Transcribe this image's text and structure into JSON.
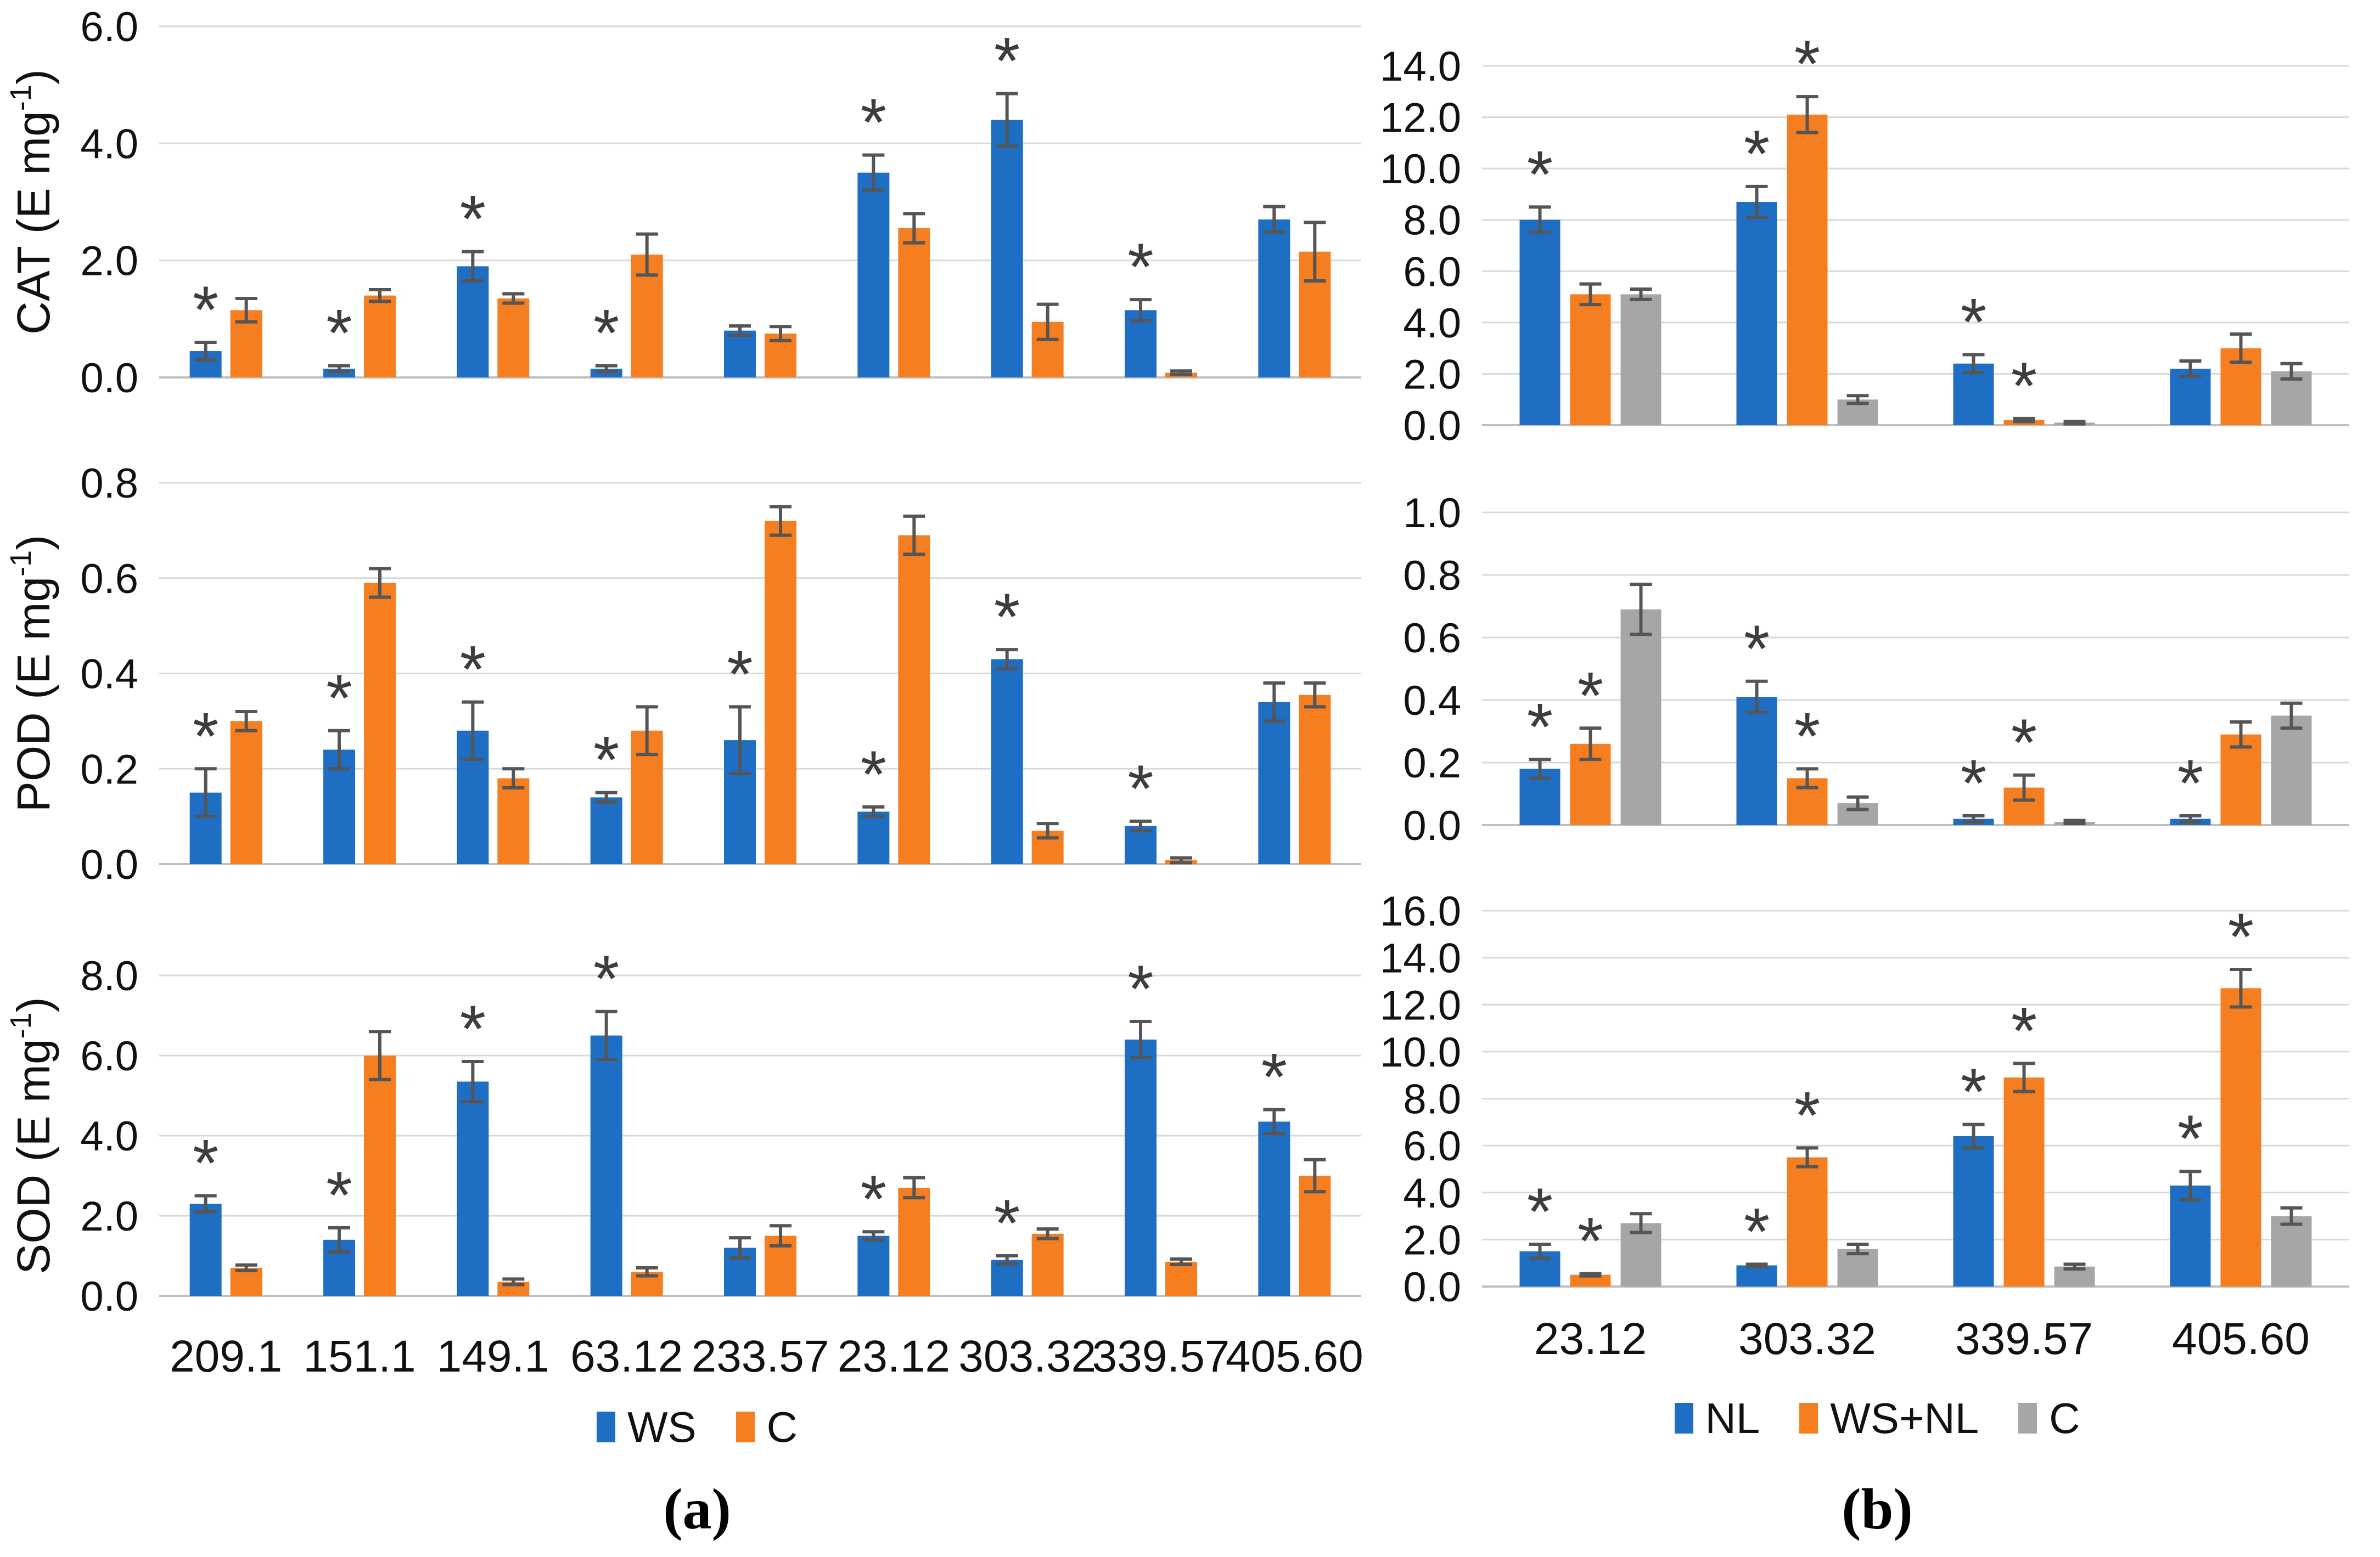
{
  "figure_title": "",
  "captions": {
    "a": "(a)",
    "b": "(b)"
  },
  "colors": {
    "ws_blue": "#1E6FC3",
    "c_orange": "#F57E20",
    "c_gray": "#A6A6A6",
    "error_bar": "#555555",
    "gridline": "#D9D9D9",
    "axis_line": "#BFBFBF",
    "asterisk": "#3D3D3D",
    "text": "#111111"
  },
  "legends": {
    "a": [
      {
        "key": "ws",
        "label": "WS",
        "color": "#1E6FC3"
      },
      {
        "key": "c",
        "label": "C",
        "color": "#F57E20"
      }
    ],
    "b": [
      {
        "key": "nl",
        "label": "NL",
        "color": "#1E6FC3"
      },
      {
        "key": "ws-nl",
        "label": "WS+NL",
        "color": "#F57E20"
      },
      {
        "key": "c",
        "label": "C",
        "color": "#A6A6A6"
      }
    ]
  },
  "chart_data": [
    {
      "id": "a_cat",
      "type": "bar",
      "panel": "a",
      "ylabel": "CAT (E mg⁻¹)",
      "ylim": [
        0,
        6
      ],
      "yticks": [
        0,
        2,
        4,
        6
      ],
      "grid": true,
      "legend_position": "bottom",
      "categories": [
        "209.1",
        "151.1",
        "149.1",
        "63.12",
        "233.57",
        "23.12",
        "303.32",
        "339.57",
        "405.60"
      ],
      "show_x_labels": false,
      "series": [
        {
          "name": "WS",
          "color": "#1E6FC3",
          "values": [
            0.45,
            0.15,
            1.9,
            0.15,
            0.8,
            3.5,
            4.4,
            1.15,
            2.7
          ],
          "errors": [
            0.15,
            0.05,
            0.25,
            0.05,
            0.08,
            0.3,
            0.45,
            0.18,
            0.22
          ],
          "sig": [
            1,
            1,
            1,
            1,
            0,
            1,
            1,
            1,
            0
          ]
        },
        {
          "name": "C",
          "color": "#F57E20",
          "values": [
            1.15,
            1.4,
            1.35,
            2.1,
            0.75,
            2.55,
            0.95,
            0.08,
            2.15
          ],
          "errors": [
            0.2,
            0.1,
            0.08,
            0.35,
            0.12,
            0.25,
            0.3,
            0.03,
            0.5
          ],
          "sig": [
            0,
            0,
            0,
            0,
            0,
            0,
            0,
            0,
            0
          ]
        }
      ]
    },
    {
      "id": "a_pod",
      "type": "bar",
      "panel": "a",
      "ylabel": "POD (E mg⁻¹)",
      "ylim": [
        0,
        0.8
      ],
      "yticks": [
        0,
        0.2,
        0.4,
        0.6,
        0.8
      ],
      "grid": true,
      "legend_position": "bottom",
      "categories": [
        "209.1",
        "151.1",
        "149.1",
        "63.12",
        "233.57",
        "23.12",
        "303.32",
        "339.57",
        "405.60"
      ],
      "show_x_labels": false,
      "series": [
        {
          "name": "WS",
          "color": "#1E6FC3",
          "values": [
            0.15,
            0.24,
            0.28,
            0.14,
            0.26,
            0.11,
            0.43,
            0.08,
            0.34
          ],
          "errors": [
            0.05,
            0.04,
            0.06,
            0.01,
            0.07,
            0.01,
            0.02,
            0.01,
            0.04
          ],
          "sig": [
            1,
            1,
            1,
            1,
            1,
            1,
            1,
            1,
            0
          ]
        },
        {
          "name": "C",
          "color": "#F57E20",
          "values": [
            0.3,
            0.59,
            0.18,
            0.28,
            0.72,
            0.69,
            0.07,
            0.008,
            0.355
          ],
          "errors": [
            0.02,
            0.03,
            0.02,
            0.05,
            0.03,
            0.04,
            0.015,
            0.005,
            0.025
          ],
          "sig": [
            0,
            0,
            0,
            0,
            0,
            0,
            0,
            0,
            0
          ]
        }
      ]
    },
    {
      "id": "a_sod",
      "type": "bar",
      "panel": "a",
      "ylabel": "SOD (E mg⁻¹)",
      "ylim": [
        0,
        8
      ],
      "yticks": [
        0,
        2,
        4,
        6,
        8
      ],
      "grid": true,
      "legend_position": "bottom",
      "categories": [
        "209.1",
        "151.1",
        "149.1",
        "63.12",
        "233.57",
        "23.12",
        "303.32",
        "339.57",
        "405.60"
      ],
      "show_x_labels": true,
      "series": [
        {
          "name": "WS",
          "color": "#1E6FC3",
          "values": [
            2.3,
            1.4,
            5.35,
            6.5,
            1.2,
            1.5,
            0.9,
            6.4,
            4.35
          ],
          "errors": [
            0.2,
            0.3,
            0.5,
            0.6,
            0.25,
            0.1,
            0.1,
            0.45,
            0.3
          ],
          "sig": [
            1,
            1,
            1,
            1,
            0,
            1,
            1,
            1,
            1
          ]
        },
        {
          "name": "C",
          "color": "#F57E20",
          "values": [
            0.7,
            6.0,
            0.35,
            0.6,
            1.5,
            2.7,
            1.55,
            0.85,
            3.0
          ],
          "errors": [
            0.07,
            0.6,
            0.07,
            0.1,
            0.25,
            0.25,
            0.12,
            0.07,
            0.4
          ],
          "sig": [
            0,
            0,
            0,
            0,
            0,
            0,
            0,
            0,
            0
          ]
        }
      ]
    },
    {
      "id": "b_cat",
      "type": "bar",
      "panel": "b",
      "ylabel": "",
      "ylim": [
        0,
        14
      ],
      "yticks": [
        0,
        2,
        4,
        6,
        8,
        10,
        12,
        14
      ],
      "grid": true,
      "legend_position": "bottom",
      "categories": [
        "23.12",
        "303.32",
        "339.57",
        "405.60"
      ],
      "show_x_labels": false,
      "series": [
        {
          "name": "NL",
          "color": "#1E6FC3",
          "values": [
            8.0,
            8.7,
            2.4,
            2.2
          ],
          "errors": [
            0.5,
            0.6,
            0.35,
            0.3
          ],
          "sig": [
            1,
            1,
            1,
            0
          ]
        },
        {
          "name": "WS+NL",
          "color": "#F57E20",
          "values": [
            5.1,
            12.1,
            0.2,
            3.0
          ],
          "errors": [
            0.4,
            0.7,
            0.06,
            0.55
          ],
          "sig": [
            0,
            1,
            1,
            0
          ]
        },
        {
          "name": "C",
          "color": "#A6A6A6",
          "values": [
            5.1,
            1.0,
            0.1,
            2.1
          ],
          "errors": [
            0.2,
            0.15,
            0.05,
            0.3
          ],
          "sig": [
            0,
            0,
            0,
            0
          ]
        }
      ]
    },
    {
      "id": "b_pod",
      "type": "bar",
      "panel": "b",
      "ylabel": "",
      "ylim": [
        0,
        1.0
      ],
      "yticks": [
        0,
        0.2,
        0.4,
        0.6,
        0.8,
        1.0
      ],
      "grid": true,
      "legend_position": "bottom",
      "categories": [
        "23.12",
        "303.32",
        "339.57",
        "405.60"
      ],
      "show_x_labels": false,
      "series": [
        {
          "name": "NL",
          "color": "#1E6FC3",
          "values": [
            0.18,
            0.41,
            0.02,
            0.02
          ],
          "errors": [
            0.03,
            0.05,
            0.01,
            0.01
          ],
          "sig": [
            1,
            1,
            1,
            1
          ]
        },
        {
          "name": "WS+NL",
          "color": "#F57E20",
          "values": [
            0.26,
            0.15,
            0.12,
            0.29
          ],
          "errors": [
            0.05,
            0.03,
            0.04,
            0.04
          ],
          "sig": [
            1,
            1,
            1,
            0
          ]
        },
        {
          "name": "C",
          "color": "#A6A6A6",
          "values": [
            0.69,
            0.07,
            0.01,
            0.35
          ],
          "errors": [
            0.08,
            0.02,
            0.005,
            0.04
          ],
          "sig": [
            0,
            0,
            0,
            0
          ]
        }
      ]
    },
    {
      "id": "b_sod",
      "type": "bar",
      "panel": "b",
      "ylabel": "",
      "ylim": [
        0,
        16
      ],
      "yticks": [
        0,
        2,
        4,
        6,
        8,
        10,
        12,
        14,
        16
      ],
      "grid": true,
      "legend_position": "bottom",
      "categories": [
        "23.12",
        "303.32",
        "339.57",
        "405.60"
      ],
      "show_x_labels": true,
      "series": [
        {
          "name": "NL",
          "color": "#1E6FC3",
          "values": [
            1.5,
            0.9,
            6.4,
            4.3
          ],
          "errors": [
            0.3,
            0.05,
            0.5,
            0.6
          ],
          "sig": [
            1,
            1,
            1,
            1
          ]
        },
        {
          "name": "WS+NL",
          "color": "#F57E20",
          "values": [
            0.5,
            5.5,
            8.9,
            12.7
          ],
          "errors": [
            0.05,
            0.4,
            0.6,
            0.8
          ],
          "sig": [
            1,
            1,
            1,
            1
          ]
        },
        {
          "name": "C",
          "color": "#A6A6A6",
          "values": [
            2.7,
            1.6,
            0.85,
            3.0
          ],
          "errors": [
            0.4,
            0.2,
            0.1,
            0.35
          ],
          "sig": [
            0,
            0,
            0,
            0
          ]
        }
      ]
    }
  ]
}
